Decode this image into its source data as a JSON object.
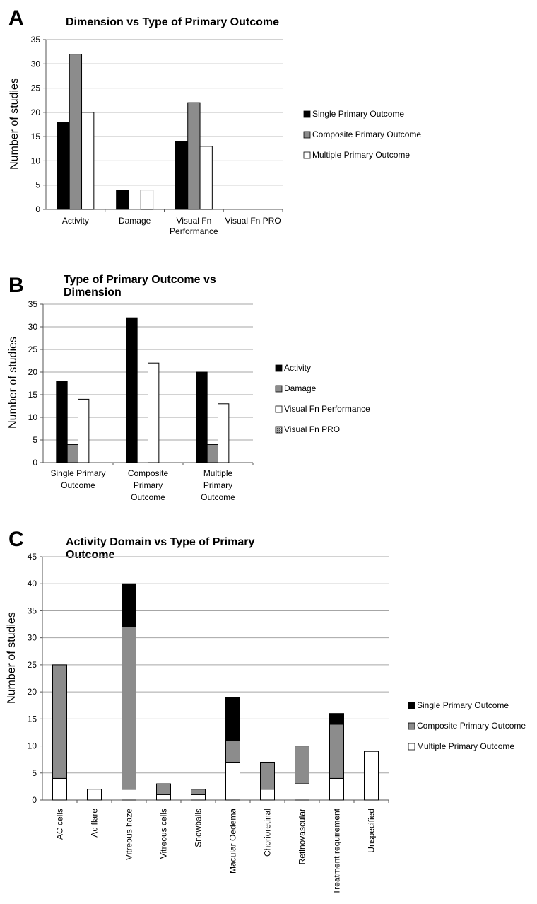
{
  "panels": {
    "a": {
      "letter": "A",
      "title_lines": [
        "Dimension vs Type of Primary Outcome"
      ],
      "ylabel": "Number of studies"
    },
    "b": {
      "letter": "B",
      "title_lines": [
        "Type of Primary Outcome vs",
        "Dimension"
      ],
      "ylabel": "Number of studies"
    },
    "c": {
      "letter": "C",
      "title_lines": [
        "Activity Domain vs Type of Primary",
        "Outcome"
      ],
      "ylabel": "Number of studies"
    }
  },
  "colors": {
    "single": "#000000",
    "composite": "#8c8c8c",
    "multiple": "#ffffff",
    "damage_b": "#8c8c8c",
    "grid": "#a6a6a6"
  },
  "chart_data": [
    {
      "type": "bar",
      "title": "Dimension vs Type of Primary Outcome",
      "ylabel": "Number of studies",
      "ylim": [
        0,
        35
      ],
      "yticks": [
        0,
        5,
        10,
        15,
        20,
        25,
        30,
        35
      ],
      "grid": true,
      "legend": "right",
      "categories": [
        [
          "Activity"
        ],
        [
          "Damage"
        ],
        [
          "Visual Fn",
          "Performance"
        ],
        [
          "Visual Fn PRO"
        ]
      ],
      "series": [
        {
          "name": "Single Primary Outcome",
          "values": [
            18,
            4,
            14,
            0
          ],
          "color": "#000000"
        },
        {
          "name": "Composite Primary Outcome",
          "values": [
            32,
            0,
            22,
            0
          ],
          "color": "#8c8c8c"
        },
        {
          "name": "Multiple Primary Outcome",
          "values": [
            20,
            4,
            13,
            0
          ],
          "color": "#ffffff"
        }
      ]
    },
    {
      "type": "bar",
      "title": "Type of Primary Outcome vs Dimension",
      "ylabel": "Number of studies",
      "ylim": [
        0,
        35
      ],
      "yticks": [
        0,
        5,
        10,
        15,
        20,
        25,
        30,
        35
      ],
      "grid": true,
      "legend": "right",
      "categories": [
        [
          "Single Primary",
          "Outcome"
        ],
        [
          "Composite",
          "Primary",
          "Outcome"
        ],
        [
          "Multiple",
          "Primary",
          "Outcome"
        ]
      ],
      "series": [
        {
          "name": "Activity",
          "values": [
            18,
            32,
            20
          ],
          "color": "#000000"
        },
        {
          "name": "Damage",
          "values": [
            4,
            0,
            4
          ],
          "color": "#8c8c8c"
        },
        {
          "name": "Visual Fn Performance",
          "values": [
            14,
            22,
            13
          ],
          "color": "#ffffff"
        },
        {
          "name": "Visual Fn PRO",
          "values": [
            0,
            0,
            0
          ],
          "color": "pattern"
        }
      ]
    },
    {
      "type": "bar",
      "stacked": true,
      "title": "Activity Domain vs Type of Primary Outcome",
      "ylabel": "Number of studies",
      "ylim": [
        0,
        45
      ],
      "yticks": [
        0,
        5,
        10,
        15,
        20,
        25,
        30,
        35,
        40,
        45
      ],
      "grid": true,
      "legend": "right",
      "categories": [
        "AC cells",
        "Ac flare",
        "Vitreous haze",
        "Vitreous cells",
        "Snowballs",
        "Macular Oedema",
        "Chorioretinal",
        "Retinovascular",
        "Treatment requirement",
        "Unspecified"
      ],
      "series": [
        {
          "name": "Single Primary Outcome",
          "values": [
            0,
            0,
            8,
            0,
            0,
            8,
            0,
            0,
            2,
            0
          ],
          "color": "#000000"
        },
        {
          "name": "Composite Primary Outcome",
          "values": [
            21,
            0,
            30,
            2,
            1,
            4,
            5,
            7,
            10,
            0
          ],
          "color": "#8c8c8c"
        },
        {
          "name": "Multiple Primary Outcome",
          "values": [
            4,
            2,
            2,
            1,
            1,
            7,
            2,
            3,
            4,
            9
          ],
          "color": "#ffffff"
        }
      ]
    }
  ]
}
